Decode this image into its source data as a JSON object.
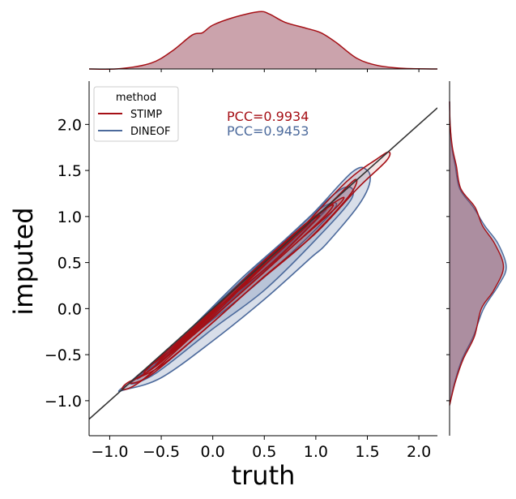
{
  "chart_data": {
    "type": "joint-kde",
    "xlabel": "truth",
    "ylabel": "imputed",
    "xlim": [
      -1.2,
      2.18
    ],
    "ylim": [
      -1.38,
      2.47
    ],
    "x_ticks": [
      -1.0,
      -0.5,
      0.0,
      0.5,
      1.0,
      1.5,
      2.0
    ],
    "y_ticks": [
      -1.0,
      -0.5,
      0.0,
      0.5,
      1.0,
      1.5,
      2.0
    ],
    "x_tick_labels": [
      "−1.0",
      "−0.5",
      "0.0",
      "0.5",
      "1.0",
      "1.5",
      "2.0"
    ],
    "y_tick_labels": [
      "−1.0",
      "−0.5",
      "0.0",
      "0.5",
      "1.0",
      "1.5",
      "2.0"
    ],
    "reference_line": {
      "slope": 1,
      "intercept": 0,
      "color": "#333333"
    },
    "legend": {
      "title": "method",
      "placement": "upper-left",
      "entries": [
        {
          "name": "STIMP",
          "color": "#a50f15"
        },
        {
          "name": "DINEOF",
          "color": "#4c6a9c"
        }
      ]
    },
    "annotations": [
      {
        "text": "PCC=0.9934",
        "color": "#a50f15",
        "x": 0.14,
        "y": 2.05
      },
      {
        "text": "PCC=0.9453",
        "color": "#4c6a9c",
        "x": 0.14,
        "y": 1.89
      }
    ],
    "series": [
      {
        "name": "STIMP",
        "color": "#a50f15",
        "contours": [
          [
            [
              -0.87,
              -0.88
            ],
            [
              -0.7,
              -0.79
            ],
            [
              -0.3,
              -0.4
            ],
            [
              0.3,
              0.25
            ],
            [
              0.8,
              0.8
            ],
            [
              1.3,
              1.38
            ],
            [
              1.6,
              1.63
            ],
            [
              1.71,
              1.7
            ],
            [
              1.68,
              1.6
            ],
            [
              1.4,
              1.3
            ],
            [
              1.0,
              0.82
            ],
            [
              0.5,
              0.35
            ],
            [
              0.0,
              -0.15
            ],
            [
              -0.5,
              -0.62
            ],
            [
              -0.82,
              -0.8
            ]
          ],
          [
            [
              -0.8,
              -0.8
            ],
            [
              -0.5,
              -0.58
            ],
            [
              0.0,
              -0.05
            ],
            [
              0.6,
              0.6
            ],
            [
              1.1,
              1.1
            ],
            [
              1.38,
              1.4
            ],
            [
              1.32,
              1.22
            ],
            [
              0.9,
              0.72
            ],
            [
              0.4,
              0.25
            ],
            [
              -0.1,
              -0.25
            ],
            [
              -0.6,
              -0.72
            ]
          ],
          [
            [
              -0.72,
              -0.72
            ],
            [
              -0.3,
              -0.35
            ],
            [
              0.3,
              0.3
            ],
            [
              0.9,
              0.92
            ],
            [
              1.25,
              1.2
            ],
            [
              1.2,
              1.1
            ],
            [
              0.85,
              0.75
            ],
            [
              0.3,
              0.2
            ],
            [
              -0.2,
              -0.3
            ],
            [
              -0.65,
              -0.7
            ]
          ],
          [
            [
              -0.62,
              -0.64
            ],
            [
              0.0,
              -0.02
            ],
            [
              0.6,
              0.62
            ],
            [
              1.12,
              1.1
            ],
            [
              1.1,
              1.02
            ],
            [
              0.7,
              0.6
            ],
            [
              0.1,
              0.0
            ],
            [
              -0.55,
              -0.62
            ]
          ],
          [
            [
              -0.5,
              -0.55
            ],
            [
              0.2,
              0.2
            ],
            [
              0.8,
              0.82
            ],
            [
              1.02,
              1.0
            ],
            [
              0.98,
              0.94
            ],
            [
              0.6,
              0.52
            ],
            [
              0.0,
              -0.04
            ],
            [
              -0.45,
              -0.52
            ]
          ],
          [
            [
              -0.35,
              -0.4
            ],
            [
              0.4,
              0.42
            ],
            [
              0.9,
              0.92
            ],
            [
              0.88,
              0.86
            ],
            [
              0.35,
              0.32
            ],
            [
              -0.3,
              -0.38
            ]
          ]
        ],
        "marginal_x": [
          [
            -1.2,
            0.0
          ],
          [
            -0.9,
            0.005
          ],
          [
            -0.6,
            0.1
          ],
          [
            -0.4,
            0.3
          ],
          [
            -0.2,
            0.58
          ],
          [
            -0.1,
            0.62
          ],
          [
            0.0,
            0.75
          ],
          [
            0.2,
            0.88
          ],
          [
            0.45,
            0.98
          ],
          [
            0.55,
            0.94
          ],
          [
            0.7,
            0.8
          ],
          [
            0.9,
            0.7
          ],
          [
            1.05,
            0.62
          ],
          [
            1.2,
            0.45
          ],
          [
            1.4,
            0.18
          ],
          [
            1.6,
            0.06
          ],
          [
            1.85,
            0.01
          ],
          [
            2.18,
            0.0
          ]
        ],
        "marginal_y": [
          [
            -1.05,
            0.0
          ],
          [
            -0.8,
            0.1
          ],
          [
            -0.55,
            0.24
          ],
          [
            -0.3,
            0.44
          ],
          [
            0.0,
            0.56
          ],
          [
            0.2,
            0.78
          ],
          [
            0.45,
            0.95
          ],
          [
            0.7,
            0.8
          ],
          [
            0.9,
            0.58
          ],
          [
            1.1,
            0.45
          ],
          [
            1.3,
            0.2
          ],
          [
            1.55,
            0.12
          ],
          [
            1.75,
            0.05
          ],
          [
            2.0,
            0.01
          ],
          [
            2.25,
            0.0
          ]
        ]
      },
      {
        "name": "DINEOF",
        "color": "#4c6a9c",
        "contours": [
          [
            [
              -0.9,
              -0.88
            ],
            [
              -0.7,
              -0.72
            ],
            [
              -0.2,
              -0.2
            ],
            [
              0.3,
              0.35
            ],
            [
              0.9,
              0.95
            ],
            [
              1.35,
              1.48
            ],
            [
              1.5,
              1.5
            ],
            [
              1.52,
              1.35
            ],
            [
              1.4,
              1.1
            ],
            [
              1.1,
              0.7
            ],
            [
              0.95,
              0.55
            ],
            [
              0.5,
              0.1
            ],
            [
              0.0,
              -0.35
            ],
            [
              -0.5,
              -0.75
            ],
            [
              -0.85,
              -0.88
            ]
          ],
          [
            [
              -0.8,
              -0.8
            ],
            [
              -0.4,
              -0.42
            ],
            [
              0.2,
              0.22
            ],
            [
              0.8,
              0.85
            ],
            [
              1.25,
              1.3
            ],
            [
              1.35,
              1.2
            ],
            [
              1.0,
              0.75
            ],
            [
              0.5,
              0.2
            ],
            [
              0.0,
              -0.22
            ],
            [
              -0.55,
              -0.7
            ]
          ],
          [
            [
              -0.7,
              -0.72
            ],
            [
              -0.2,
              -0.2
            ],
            [
              0.4,
              0.42
            ],
            [
              1.0,
              1.05
            ],
            [
              1.2,
              1.12
            ],
            [
              0.9,
              0.75
            ],
            [
              0.3,
              0.15
            ],
            [
              -0.3,
              -0.38
            ],
            [
              -0.65,
              -0.7
            ]
          ],
          [
            [
              -0.6,
              -0.62
            ],
            [
              0.0,
              0.0
            ],
            [
              0.6,
              0.62
            ],
            [
              1.08,
              1.06
            ],
            [
              0.95,
              0.9
            ],
            [
              0.4,
              0.3
            ],
            [
              -0.2,
              -0.28
            ],
            [
              -0.55,
              -0.6
            ]
          ],
          [
            [
              -0.5,
              -0.52
            ],
            [
              0.1,
              0.1
            ],
            [
              0.7,
              0.72
            ],
            [
              0.98,
              0.98
            ],
            [
              0.85,
              0.8
            ],
            [
              0.3,
              0.22
            ],
            [
              -0.45,
              -0.5
            ]
          ],
          [
            [
              -0.3,
              -0.32
            ],
            [
              0.3,
              0.32
            ],
            [
              0.8,
              0.82
            ],
            [
              0.75,
              0.72
            ],
            [
              0.2,
              0.16
            ],
            [
              -0.25,
              -0.3
            ]
          ]
        ],
        "marginal_y": [
          [
            -1.05,
            0.0
          ],
          [
            -0.8,
            0.09
          ],
          [
            -0.55,
            0.22
          ],
          [
            -0.3,
            0.42
          ],
          [
            0.0,
            0.6
          ],
          [
            0.25,
            0.86
          ],
          [
            0.45,
            1.0
          ],
          [
            0.7,
            0.86
          ],
          [
            0.9,
            0.62
          ],
          [
            1.1,
            0.42
          ],
          [
            1.3,
            0.18
          ],
          [
            1.55,
            0.1
          ],
          [
            1.75,
            0.04
          ],
          [
            2.0,
            0.01
          ],
          [
            2.25,
            0.0
          ]
        ]
      }
    ]
  }
}
